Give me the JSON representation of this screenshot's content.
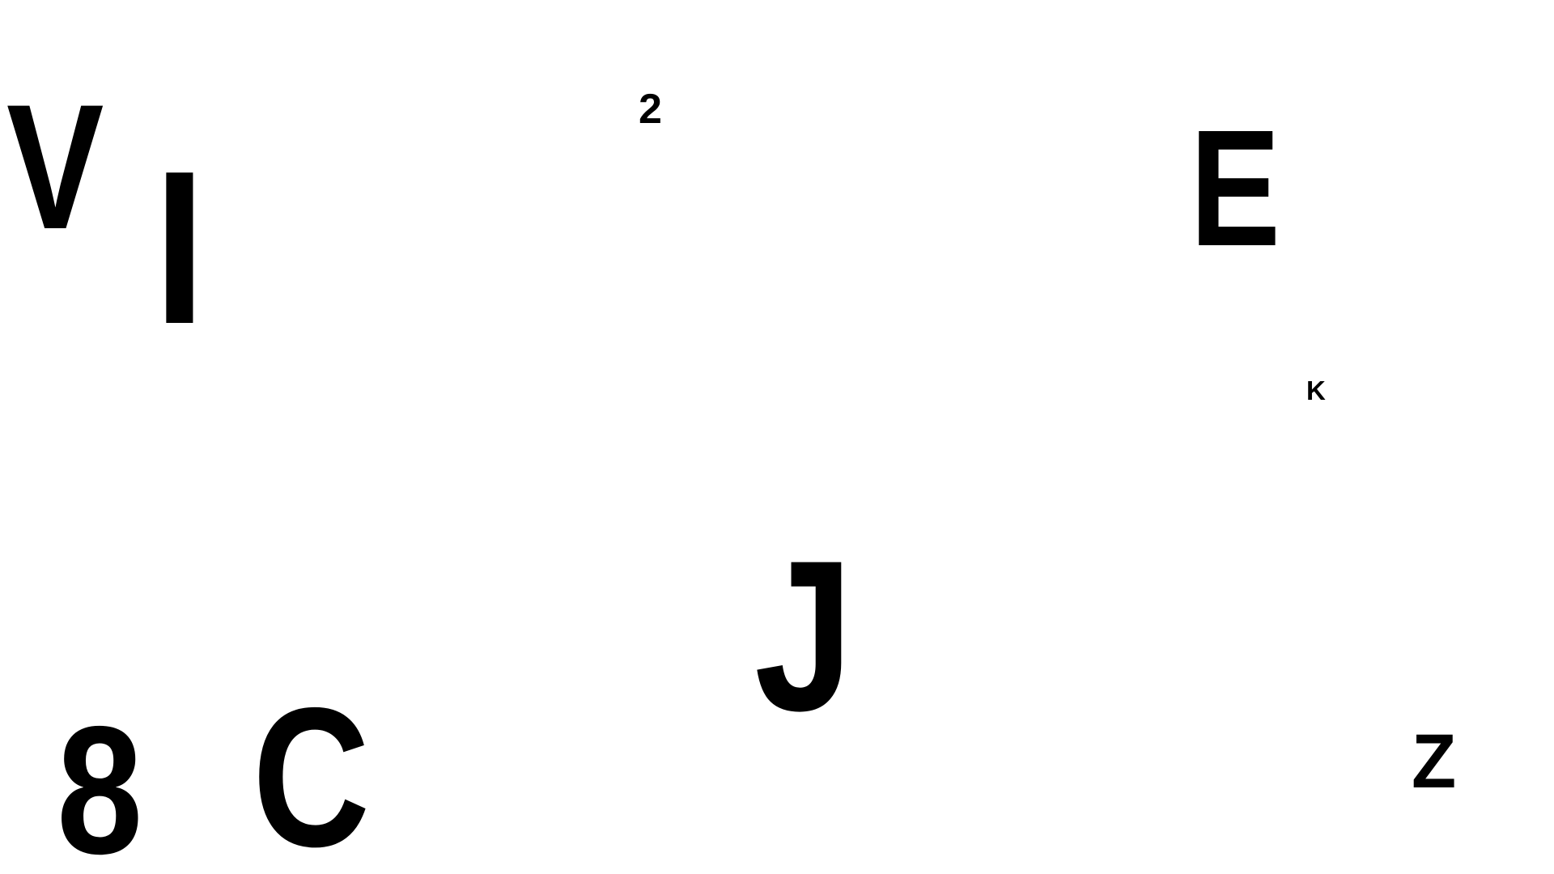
{
  "background_color": "#ffffff",
  "glyph_color": "#000000",
  "glyphs": {
    "v": "V",
    "i": "I",
    "two": "2",
    "e": "E",
    "k": "K",
    "j": "J",
    "eight": "8",
    "c": "C",
    "z": "Z"
  }
}
